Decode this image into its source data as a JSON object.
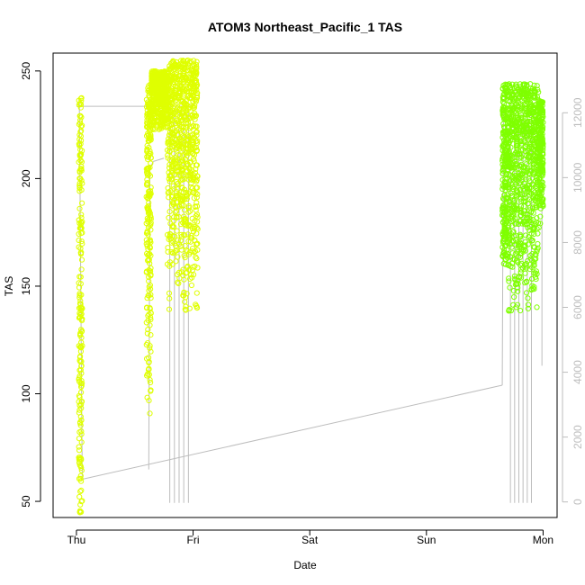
{
  "chart_data": {
    "type": "scatter",
    "title": "ATOM3 Northeast_Pacific_1 TAS",
    "xlabel": "Date",
    "ylabel": "TAS",
    "x_tick_labels": [
      "Thu",
      "Fri",
      "Sat",
      "Sun",
      "Mon"
    ],
    "x_tick_values": [
      0,
      1,
      2,
      3,
      4
    ],
    "xlim": [
      -0.2,
      4.12
    ],
    "ylim": [
      42.5,
      258.3
    ],
    "y_ticks": [
      50,
      100,
      150,
      200,
      250
    ],
    "y2_ticks": [
      0,
      2000,
      4000,
      6000,
      8000,
      10000,
      12000
    ],
    "y2lim": [
      -480,
      13840
    ],
    "colors": {
      "day1": "#dfff00",
      "day2": "#7fff00",
      "altitude_line": "#bdbdbd",
      "frame": "#000000"
    },
    "series": [
      {
        "color": "#dfff00",
        "clusters": [
          {
            "x_range": [
              0.02,
              0.05
            ],
            "y_range": [
              44,
              238
            ]
          },
          {
            "x_range": [
              0.6,
              0.64
            ],
            "y_range": [
              88,
              244
            ]
          },
          {
            "x_range": [
              0.64,
              0.78
            ],
            "y_range": [
              222,
              250
            ]
          },
          {
            "x_range": [
              0.78,
              1.04
            ],
            "y_range": [
              134,
              255
            ]
          }
        ]
      },
      {
        "color": "#7fff00",
        "clusters": [
          {
            "x_range": [
              3.65,
              3.7
            ],
            "y_range": [
              160,
              244
            ]
          },
          {
            "x_range": [
              3.7,
              3.96
            ],
            "y_range": [
              134,
              244
            ]
          },
          {
            "x_range": [
              3.96,
              4.0
            ],
            "y_range": [
              176,
              236
            ]
          }
        ]
      },
      {
        "axis": "right",
        "color": "#bdbdbd",
        "points": [
          [
            0.0,
            12200
          ],
          [
            0.01,
            12200
          ],
          [
            1.0,
            12200
          ],
          [
            0.05,
            700
          ],
          [
            3.65,
            3600
          ],
          [
            0.62,
            1000
          ],
          [
            0.63,
            10300
          ],
          [
            0.66,
            10500
          ],
          [
            0.75,
            10600
          ],
          [
            0.8,
            12100
          ],
          [
            0.9,
            12000
          ],
          [
            0.98,
            12200
          ],
          [
            1.02,
            12300
          ]
        ]
      }
    ]
  }
}
